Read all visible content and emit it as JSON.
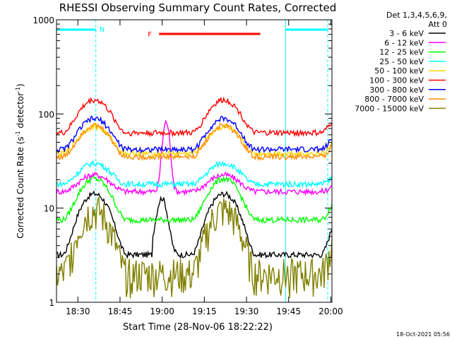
{
  "chart_data": {
    "type": "line",
    "title": "RHESSI Observing Summary Count Rates, Corrected",
    "xlabel": "Start Time (28-Nov-06 18:22:22)",
    "ylabel_main": "Corrected Count Rate (s",
    "ylabel_sup1": "-1",
    "ylabel_mid": " detector",
    "ylabel_sup2": "-1",
    "ylabel_end": ")",
    "y_scale": "log",
    "ylim": [
      1,
      1000
    ],
    "xlim_minutes": [
      0,
      98
    ],
    "x_ticks": [
      {
        "label": "18:30",
        "minutes": 7.6
      },
      {
        "label": "18:45",
        "minutes": 22.6
      },
      {
        "label": "19:00",
        "minutes": 37.6
      },
      {
        "label": "19:15",
        "minutes": 52.6
      },
      {
        "label": "19:30",
        "minutes": 67.6
      },
      {
        "label": "19:45",
        "minutes": 82.6
      },
      {
        "label": "20:00",
        "minutes": 97.6
      }
    ],
    "y_ticks": [
      {
        "label": "1",
        "value": 1
      },
      {
        "label": "10",
        "value": 10
      },
      {
        "label": "100",
        "value": 100
      },
      {
        "label": "1000",
        "value": 1000
      }
    ],
    "legend_header": [
      "Det 1,3,4,5,6,9,",
      "Att 0"
    ],
    "legend_position": "right",
    "series": [
      {
        "name": "3 - 6 keV",
        "color": "#000000"
      },
      {
        "name": "6 - 12 keV",
        "color": "#ff00ff"
      },
      {
        "name": "12 - 25 keV",
        "color": "#00ff00"
      },
      {
        "name": "25 - 50 keV",
        "color": "#00ffff"
      },
      {
        "name": "50 - 100 keV",
        "color": "#ffd700"
      },
      {
        "name": "100 - 300 keV",
        "color": "#ff0000"
      },
      {
        "name": "300 - 800 keV",
        "color": "#0000ff"
      },
      {
        "name": "800 - 7000 keV",
        "color": "#ff8c00"
      },
      {
        "name": "7000 - 15000 keV",
        "color": "#808000"
      }
    ],
    "night_intervals": [
      {
        "start": 0,
        "end": 14
      },
      {
        "start": 81.5,
        "end": 96.5
      }
    ],
    "saa_marker_minute": 14,
    "saa_label": "N",
    "flare_flag": {
      "label": "F",
      "start": 36.5,
      "end": 72.5,
      "color": "#ff0000"
    },
    "timestamp": "18-Oct-2021 05:56"
  }
}
